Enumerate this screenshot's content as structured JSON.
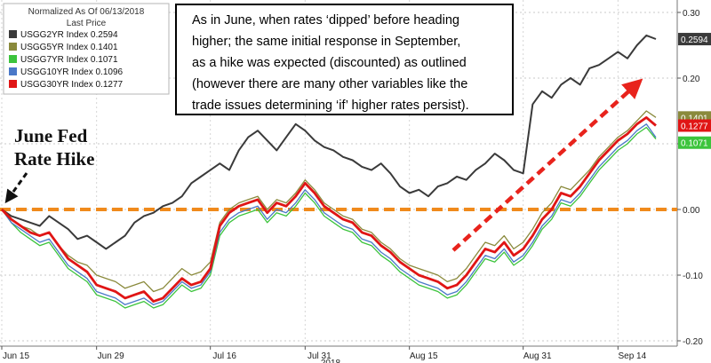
{
  "chart_data": {
    "type": "line",
    "legend": {
      "title_line1": "Normalized As Of 06/13/2018",
      "title_line2": "Last Price",
      "placement": "top-left"
    },
    "x_ticks": [
      "Jun 15",
      "Jun 29",
      "Jul 16",
      "Jul 31",
      "Aug 15",
      "Aug 31",
      "Sep 14"
    ],
    "x_tick_index": [
      0,
      10,
      22,
      32,
      43,
      55,
      65
    ],
    "x_label_partial": "2018",
    "ylim": [
      -0.2,
      0.3
    ],
    "y_ticks": [
      "0.30",
      "0.20",
      "0.10",
      "0.00",
      "-0.10",
      "-0.20"
    ],
    "y_tick_values": [
      0.3,
      0.2,
      0.1,
      0.0,
      -0.1,
      -0.2
    ],
    "grid": true,
    "zero_line": {
      "value": 0.0,
      "color": "#f08a1c",
      "style": "dashed"
    },
    "series": [
      {
        "name": "USGG2YR Index",
        "last_label": "0.2594",
        "color": "#3a3a3a",
        "values": [
          0.0,
          -0.01,
          -0.015,
          -0.02,
          -0.025,
          -0.01,
          -0.02,
          -0.03,
          -0.045,
          -0.04,
          -0.05,
          -0.06,
          -0.05,
          -0.04,
          -0.02,
          -0.01,
          -0.005,
          0.005,
          0.01,
          0.02,
          0.04,
          0.05,
          0.06,
          0.07,
          0.06,
          0.09,
          0.11,
          0.12,
          0.105,
          0.09,
          0.11,
          0.13,
          0.12,
          0.105,
          0.095,
          0.09,
          0.08,
          0.075,
          0.065,
          0.06,
          0.07,
          0.055,
          0.035,
          0.025,
          0.03,
          0.02,
          0.035,
          0.04,
          0.05,
          0.045,
          0.06,
          0.07,
          0.085,
          0.075,
          0.06,
          0.055,
          0.16,
          0.18,
          0.17,
          0.19,
          0.2,
          0.19,
          0.215,
          0.22,
          0.23,
          0.24,
          0.23,
          0.25,
          0.265,
          0.2594
        ]
      },
      {
        "name": "USGG5YR Index",
        "last_label": "0.1401",
        "color": "#8a8a3c",
        "values": [
          0.0,
          -0.015,
          -0.025,
          -0.03,
          -0.04,
          -0.035,
          -0.055,
          -0.07,
          -0.08,
          -0.085,
          -0.1,
          -0.105,
          -0.11,
          -0.12,
          -0.115,
          -0.11,
          -0.125,
          -0.12,
          -0.105,
          -0.09,
          -0.1,
          -0.095,
          -0.08,
          -0.02,
          0.0,
          0.01,
          0.015,
          0.02,
          0.0,
          0.015,
          0.01,
          0.025,
          0.045,
          0.03,
          0.01,
          0.0,
          -0.01,
          -0.015,
          -0.03,
          -0.035,
          -0.05,
          -0.06,
          -0.075,
          -0.085,
          -0.09,
          -0.095,
          -0.1,
          -0.11,
          -0.105,
          -0.09,
          -0.07,
          -0.05,
          -0.055,
          -0.04,
          -0.06,
          -0.05,
          -0.03,
          -0.005,
          0.01,
          0.035,
          0.03,
          0.045,
          0.06,
          0.08,
          0.095,
          0.11,
          0.12,
          0.135,
          0.15,
          0.1401
        ]
      },
      {
        "name": "USGG7YR Index",
        "last_label": "0.1071",
        "color": "#3cc43c",
        "values": [
          0.0,
          -0.02,
          -0.035,
          -0.045,
          -0.055,
          -0.05,
          -0.07,
          -0.09,
          -0.1,
          -0.11,
          -0.13,
          -0.135,
          -0.14,
          -0.15,
          -0.145,
          -0.14,
          -0.15,
          -0.145,
          -0.13,
          -0.115,
          -0.125,
          -0.12,
          -0.1,
          -0.04,
          -0.02,
          -0.01,
          -0.005,
          0.0,
          -0.02,
          -0.005,
          -0.01,
          0.005,
          0.025,
          0.01,
          -0.01,
          -0.02,
          -0.03,
          -0.035,
          -0.05,
          -0.055,
          -0.07,
          -0.08,
          -0.095,
          -0.105,
          -0.115,
          -0.12,
          -0.125,
          -0.135,
          -0.13,
          -0.115,
          -0.095,
          -0.075,
          -0.08,
          -0.065,
          -0.085,
          -0.075,
          -0.055,
          -0.03,
          -0.015,
          0.01,
          0.005,
          0.02,
          0.04,
          0.06,
          0.075,
          0.09,
          0.1,
          0.115,
          0.125,
          0.1071
        ]
      },
      {
        "name": "USGG10YR Index",
        "last_label": "0.1096",
        "color": "#4a78c8",
        "values": [
          0.0,
          -0.02,
          -0.03,
          -0.04,
          -0.05,
          -0.045,
          -0.065,
          -0.085,
          -0.095,
          -0.105,
          -0.125,
          -0.13,
          -0.135,
          -0.145,
          -0.14,
          -0.135,
          -0.145,
          -0.14,
          -0.125,
          -0.11,
          -0.12,
          -0.115,
          -0.095,
          -0.035,
          -0.015,
          -0.005,
          0.0,
          0.005,
          -0.015,
          0.0,
          -0.005,
          0.01,
          0.03,
          0.015,
          -0.005,
          -0.015,
          -0.025,
          -0.03,
          -0.045,
          -0.05,
          -0.065,
          -0.075,
          -0.09,
          -0.1,
          -0.11,
          -0.115,
          -0.12,
          -0.13,
          -0.125,
          -0.11,
          -0.09,
          -0.07,
          -0.075,
          -0.06,
          -0.08,
          -0.07,
          -0.05,
          -0.025,
          -0.01,
          0.015,
          0.01,
          0.025,
          0.045,
          0.065,
          0.08,
          0.095,
          0.105,
          0.12,
          0.13,
          0.1096
        ]
      },
      {
        "name": "USGG30YR Index",
        "last_label": "0.1277",
        "color": "#e01515",
        "values": [
          0.0,
          -0.015,
          -0.025,
          -0.035,
          -0.04,
          -0.035,
          -0.055,
          -0.075,
          -0.085,
          -0.095,
          -0.115,
          -0.12,
          -0.125,
          -0.135,
          -0.13,
          -0.125,
          -0.14,
          -0.135,
          -0.12,
          -0.105,
          -0.115,
          -0.11,
          -0.09,
          -0.025,
          -0.005,
          0.005,
          0.01,
          0.015,
          -0.005,
          0.01,
          0.005,
          0.02,
          0.04,
          0.025,
          0.005,
          -0.005,
          -0.015,
          -0.02,
          -0.035,
          -0.04,
          -0.055,
          -0.065,
          -0.08,
          -0.09,
          -0.1,
          -0.105,
          -0.11,
          -0.12,
          -0.115,
          -0.1,
          -0.08,
          -0.06,
          -0.065,
          -0.05,
          -0.07,
          -0.06,
          -0.04,
          -0.015,
          0.0,
          0.025,
          0.02,
          0.035,
          0.055,
          0.075,
          0.09,
          0.105,
          0.115,
          0.13,
          0.14,
          0.1277
        ]
      }
    ],
    "annotations": {
      "note_lines": [
        "As in June, when rates ‘dipped’ before heading",
        "higher; the same initial response in September,",
        "as a hike was expected (discounted) as outlined",
        "(however there are many other variables like the",
        "trade issues determining ‘if’ higher rates persist)."
      ],
      "event_line1": "June Fed",
      "event_line2": "Rate Hike",
      "trend_arrow_color": "#e8231c"
    }
  }
}
